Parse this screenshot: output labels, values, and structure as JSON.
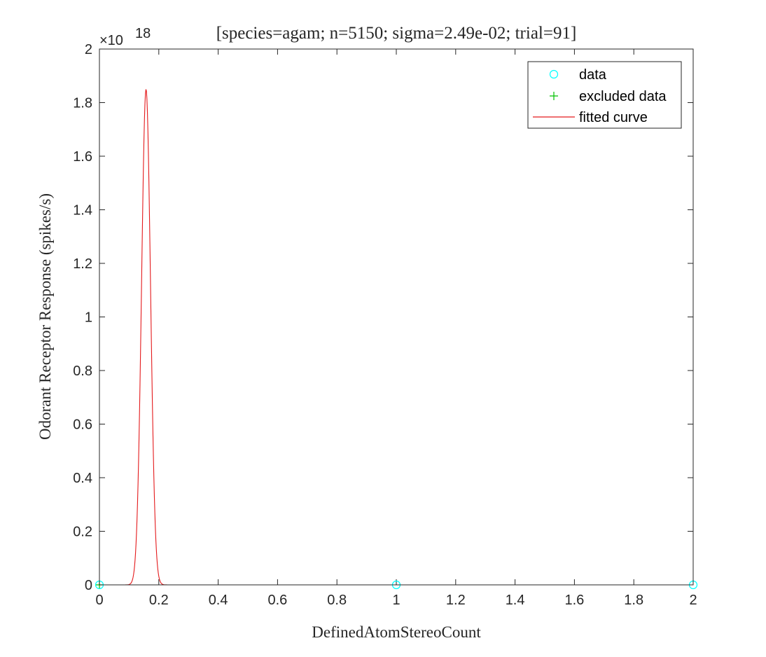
{
  "chart_data": {
    "type": "line",
    "title": "[species=agam; n=5150; sigma=2.49e-02; trial=91]",
    "xlabel": "DefinedAtomStereoCount",
    "ylabel": "Odorant Receptor Response (spikes/s)",
    "y_exponent_base": "×10",
    "y_exponent_power": "18",
    "xlim": [
      0,
      2
    ],
    "ylim": [
      0,
      2
    ],
    "y_scale": 1e+18,
    "x_ticks": [
      0,
      0.2,
      0.4,
      0.6,
      0.8,
      1,
      1.2,
      1.4,
      1.6,
      1.8,
      2
    ],
    "x_tick_labels": [
      "0",
      "0.2",
      "0.4",
      "0.6",
      "0.8",
      "1",
      "1.2",
      "1.4",
      "1.6",
      "1.8",
      "2"
    ],
    "y_ticks": [
      0,
      0.2,
      0.4,
      0.6,
      0.8,
      1,
      1.2,
      1.4,
      1.6,
      1.8,
      2
    ],
    "y_tick_labels": [
      "0",
      "0.2",
      "0.4",
      "0.6",
      "0.8",
      "1",
      "1.2",
      "1.4",
      "1.6",
      "1.8",
      "2"
    ],
    "grid": false,
    "legend_position": "top-right",
    "series": [
      {
        "name": "data",
        "kind": "scatter",
        "marker": "circle",
        "color": "#00ffff",
        "x": [
          0,
          1,
          2
        ],
        "y": [
          0,
          0,
          0
        ]
      },
      {
        "name": "excluded data",
        "kind": "scatter",
        "marker": "plus",
        "color": "#00c000",
        "x": [
          0
        ],
        "y": [
          0
        ]
      },
      {
        "name": "fitted curve",
        "kind": "line",
        "color": "#e41a1c",
        "model": "gaussian",
        "peak": 1.85e+18,
        "center": 0.157,
        "sigma": 0.0151
      }
    ]
  }
}
